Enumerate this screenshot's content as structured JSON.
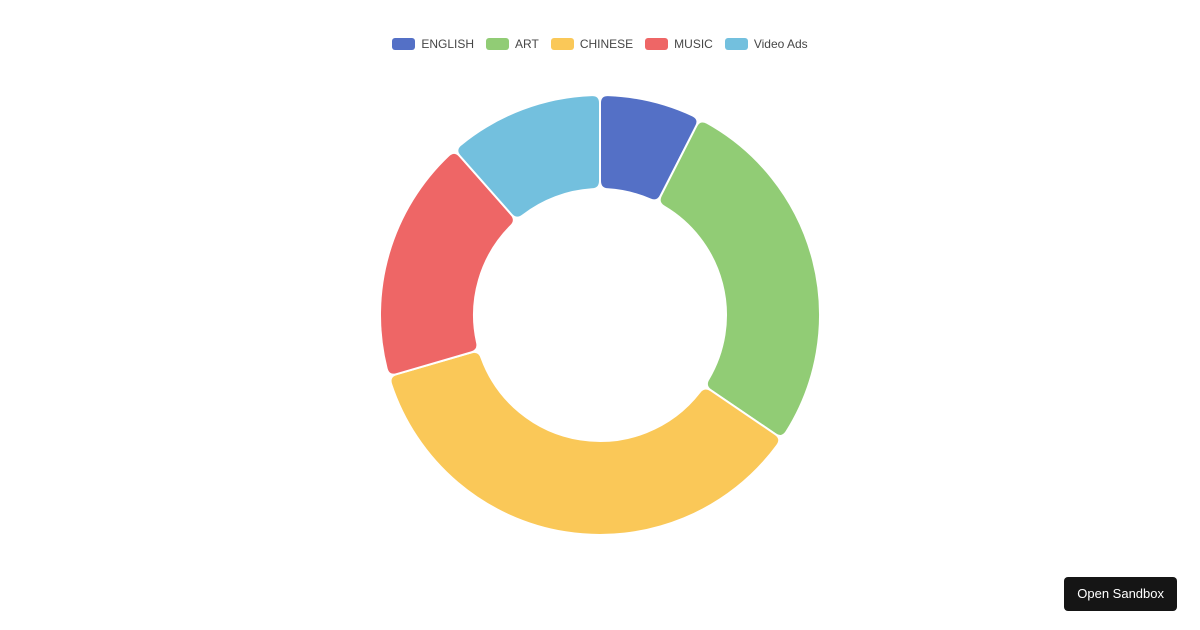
{
  "chart_data": {
    "type": "pie",
    "variant": "doughnut",
    "categories": [
      "ENGLISH",
      "ART",
      "CHINESE",
      "MUSIC",
      "Video Ads"
    ],
    "values": [
      7.5,
      27,
      36,
      18,
      11.5
    ],
    "colors": [
      "#5470c6",
      "#91cc75",
      "#fac858",
      "#ee6666",
      "#73c0de"
    ],
    "legend_position": "top-center"
  },
  "sandbox": {
    "label": "Open Sandbox"
  }
}
